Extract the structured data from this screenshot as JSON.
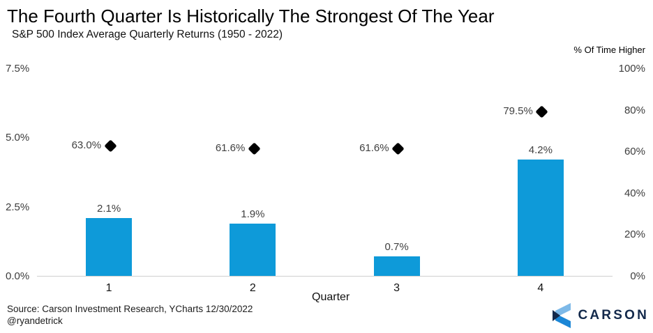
{
  "header": {
    "title": "The Fourth Quarter Is Historically The Strongest Of The Year",
    "subtitle": "S&P 500 Index Average Quarterly Returns (1950 - 2022)"
  },
  "chart_data": {
    "type": "bar",
    "title": "The Fourth Quarter Is Historically The Strongest Of The Year",
    "subtitle": "S&P 500 Index Average Quarterly Returns (1950 - 2022)",
    "categories": [
      "1",
      "2",
      "3",
      "4"
    ],
    "xlabel": "Quarter",
    "left_axis": {
      "ticks": [
        "0.0%",
        "2.5%",
        "5.0%",
        "7.5%"
      ],
      "range": [
        0,
        7.5
      ]
    },
    "right_axis": {
      "title": "% Of Time Higher",
      "ticks": [
        "0%",
        "20%",
        "40%",
        "60%",
        "80%",
        "100%"
      ],
      "range": [
        0,
        100
      ]
    },
    "series": [
      {
        "name": "Average Quarterly Return",
        "type": "bar",
        "axis": "left",
        "values": [
          2.1,
          1.9,
          0.7,
          4.2
        ],
        "labels": [
          "2.1%",
          "1.9%",
          "0.7%",
          "4.2%"
        ],
        "color": "#0e9ad9"
      },
      {
        "name": "% Of Time Higher",
        "type": "point",
        "marker": "diamond",
        "axis": "right",
        "values": [
          63.0,
          61.6,
          61.6,
          79.5
        ],
        "labels": [
          "63.0%",
          "61.6%",
          "61.6%",
          "79.5%"
        ],
        "color": "#000000"
      }
    ],
    "grid": false,
    "legend": "none"
  },
  "footer": {
    "source_line1": "Source: Carson Investment Research, YCharts 12/30/2022",
    "source_line2": "@ryandetrick",
    "logo_text": "CARSON"
  },
  "colors": {
    "bar_blue": "#0e9ad9",
    "marker_black": "#000000",
    "baseline_gray": "#cfcfcf",
    "logo_navy": "#13294b",
    "logo_light_blue": "#7db9e8",
    "logo_mid_blue": "#1b86d6",
    "background": "#ffffff"
  }
}
